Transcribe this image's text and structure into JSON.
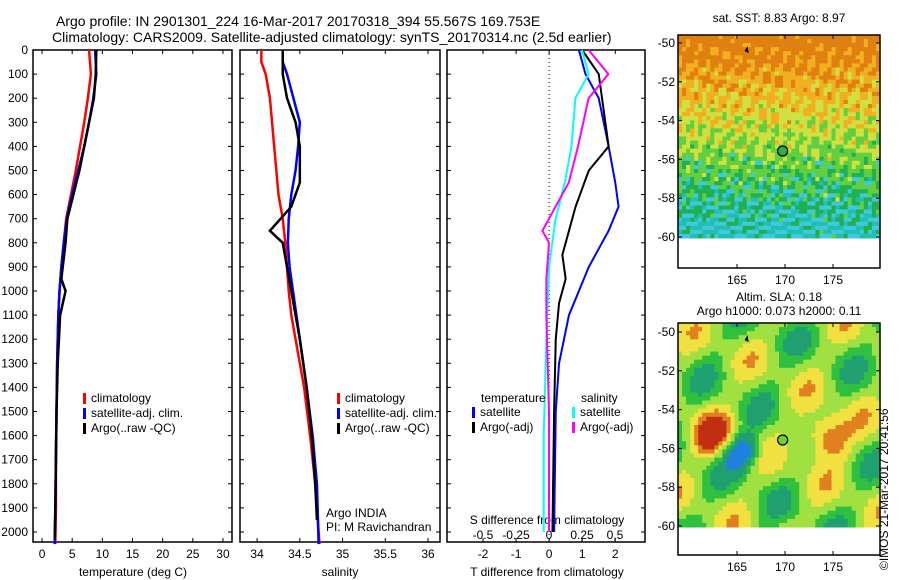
{
  "header": {
    "line1": "Argo profile: IN 2901301_224 16-Mar-2017 20170318_394 55.567S 169.753E",
    "line2": "Climatology: CARS2009. Satellite-adjusted climatology: synTS_20170314.nc (2.5d earlier)"
  },
  "credit": "©IMOS 21-Mar-2017 20:41:56",
  "colors": {
    "clim": "#ff0000",
    "sat": "#0000ff",
    "argo": "#000000",
    "ssat": "#00ffff",
    "sargo": "#ff00ff"
  },
  "chart_data": [
    {
      "type": "line",
      "id": "temperature",
      "xlabel": "temperature (deg C)",
      "xlim": [
        -1.5,
        31.5
      ],
      "ylim": [
        0,
        2050
      ],
      "xticks": [
        0,
        5,
        10,
        15,
        20,
        25,
        30
      ],
      "yticks": [
        0,
        100,
        200,
        300,
        400,
        500,
        600,
        700,
        800,
        900,
        1000,
        1100,
        1200,
        1300,
        1400,
        1500,
        1600,
        1700,
        1800,
        1900,
        2000
      ],
      "legend": [
        "climatology",
        "satellite-adj. clim.",
        "Argo(..raw -QC)"
      ],
      "series": [
        {
          "name": "climatology",
          "color": "clim",
          "x": [
            7.8,
            8.1,
            7.6,
            7.0,
            6.3,
            5.6,
            4.8,
            4.0,
            3.6,
            3.2,
            2.9,
            2.7,
            2.5,
            2.4,
            2.3,
            2.3,
            2.2
          ],
          "y": [
            0,
            100,
            200,
            300,
            400,
            500,
            600,
            700,
            800,
            900,
            1000,
            1100,
            1300,
            1500,
            1700,
            1900,
            2050
          ]
        },
        {
          "name": "satellite-adj. clim.",
          "color": "sat",
          "x": [
            8.8,
            9.0,
            8.5,
            7.8,
            7.0,
            6.0,
            5.0,
            4.1,
            3.6,
            3.2,
            2.9,
            2.7,
            2.5,
            2.4,
            2.3,
            2.2,
            2.1
          ],
          "y": [
            0,
            100,
            200,
            300,
            400,
            500,
            600,
            700,
            800,
            900,
            1000,
            1100,
            1300,
            1500,
            1700,
            1900,
            2050
          ]
        },
        {
          "name": "Argo(..raw -QC)",
          "color": "argo",
          "x": [
            9.0,
            8.9,
            8.6,
            7.8,
            7.0,
            6.2,
            5.2,
            4.2,
            3.9,
            3.2,
            3.9,
            3.0,
            2.6,
            2.4,
            2.3,
            2.2,
            2.1
          ],
          "y": [
            0,
            100,
            200,
            300,
            400,
            500,
            600,
            700,
            800,
            950,
            1000,
            1100,
            1300,
            1500,
            1700,
            1900,
            2030
          ]
        }
      ]
    },
    {
      "type": "line",
      "id": "salinity",
      "xlabel": "salinity",
      "xlim": [
        33.8,
        36.14
      ],
      "ylim": [
        0,
        2050
      ],
      "xticks": [
        "34",
        "34.5",
        "35",
        "35.5",
        "36"
      ],
      "legend": [
        "climatology",
        "satellite-adj. clim.",
        "Argo(..raw -QC)"
      ],
      "annotation": [
        "Argo INDIA",
        "PI: M Ravichandran"
      ],
      "series": [
        {
          "name": "climatology",
          "color": "clim",
          "x": [
            34.05,
            34.05,
            34.1,
            34.15,
            34.2,
            34.25,
            34.3,
            34.33,
            34.35,
            34.37,
            34.4,
            34.45,
            34.55,
            34.62,
            34.68,
            34.72,
            34.73
          ],
          "y": [
            0,
            50,
            100,
            200,
            400,
            600,
            700,
            800,
            900,
            1000,
            1100,
            1200,
            1400,
            1600,
            1800,
            2000,
            2050
          ]
        },
        {
          "name": "satellite-adj. clim.",
          "color": "sat",
          "x": [
            34.3,
            34.3,
            34.35,
            34.5,
            34.48,
            34.45,
            34.4,
            34.37,
            34.36,
            34.38,
            34.42,
            34.5,
            34.58,
            34.65,
            34.7,
            34.72
          ],
          "y": [
            0,
            50,
            100,
            300,
            400,
            500,
            600,
            700,
            800,
            900,
            1000,
            1200,
            1400,
            1600,
            1800,
            2050
          ]
        },
        {
          "name": "Argo(..raw -QC)",
          "color": "argo",
          "x": [
            34.3,
            34.3,
            34.35,
            34.45,
            34.5,
            34.5,
            34.4,
            34.15,
            34.3,
            34.35,
            34.4,
            34.5,
            34.58,
            34.64,
            34.68,
            34.7
          ],
          "y": [
            0,
            100,
            200,
            300,
            400,
            550,
            650,
            750,
            800,
            900,
            1000,
            1200,
            1400,
            1600,
            1800,
            1950
          ]
        }
      ]
    },
    {
      "type": "line",
      "id": "differences",
      "xlabel": "T difference from climatology",
      "x2label": "S difference from climatology",
      "xlim": [
        -3.09,
        2.9
      ],
      "ylim": [
        0,
        2050
      ],
      "xticks": [
        "-2",
        "-1",
        "0",
        "1",
        "2"
      ],
      "x2ticks": [
        "-0.5",
        "-0.25",
        "0",
        "0.25",
        "0.5"
      ],
      "legend": {
        "temperature": "temperature",
        "salinity": "salinity",
        "items": [
          "satellite",
          "Argo(-adj)",
          "satellite",
          "Argo(-adj)"
        ]
      },
      "series": [
        {
          "name": "T satellite",
          "color": "sat",
          "axis": "T",
          "x": [
            0.9,
            1.1,
            1.5,
            1.8,
            2.0,
            2.1,
            1.8,
            1.2,
            0.6,
            0.3,
            0.2,
            0.15
          ],
          "y": [
            0,
            100,
            200,
            400,
            550,
            650,
            750,
            900,
            1100,
            1300,
            1500,
            2000
          ]
        },
        {
          "name": "T Argo(-adj)",
          "color": "argo",
          "axis": "T",
          "x": [
            1.0,
            1.5,
            1.6,
            1.8,
            1.2,
            0.8,
            0.6,
            0.4,
            0.5,
            0.3,
            0.2,
            0.15,
            0.1
          ],
          "y": [
            0,
            100,
            200,
            400,
            500,
            650,
            750,
            850,
            950,
            1050,
            1200,
            1500,
            2000
          ]
        },
        {
          "name": "S satellite",
          "color": "ssat",
          "axis": "S",
          "x": [
            0.25,
            0.3,
            0.2,
            0.17,
            0.12,
            0.05,
            0.0,
            -0.02,
            -0.04,
            -0.04
          ],
          "y": [
            0,
            100,
            200,
            400,
            550,
            700,
            900,
            1200,
            1600,
            2000
          ]
        },
        {
          "name": "S Argo(-adj)",
          "color": "sargo",
          "axis": "S",
          "x": [
            0.3,
            0.45,
            0.3,
            0.22,
            0.15,
            0.05,
            -0.05,
            0.0,
            -0.02,
            -0.02,
            0.0,
            0.0
          ],
          "y": [
            0,
            100,
            200,
            400,
            550,
            650,
            750,
            800,
            950,
            1100,
            1500,
            2000
          ]
        }
      ]
    },
    {
      "type": "heatmap",
      "id": "sst-map",
      "title": "sat. SST: 8.83 Argo: 8.97",
      "xticks": [
        "165",
        "170",
        "175"
      ],
      "yticks": [
        "-50",
        "-52",
        "-54",
        "-56",
        "-58",
        "-60"
      ],
      "marker": [
        169.753,
        -55.567
      ]
    },
    {
      "type": "heatmap",
      "id": "sla-map",
      "title1": "Altim. SLA: 0.18",
      "title2": "Argo h1000: 0.073 h2000: 0.11",
      "xticks": [
        "165",
        "170",
        "175"
      ],
      "yticks": [
        "-50",
        "-52",
        "-54",
        "-56",
        "-58",
        "-60"
      ],
      "marker": [
        169.753,
        -55.567
      ]
    }
  ]
}
